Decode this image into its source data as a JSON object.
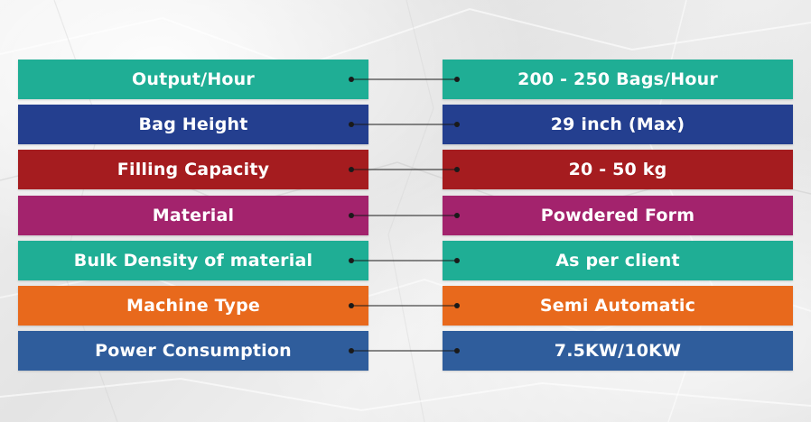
{
  "colors": {
    "teal": "#1fae95",
    "navy": "#243f8f",
    "red": "#a51c1f",
    "magenta": "#a3236d",
    "orange": "#e8691c",
    "blue": "#2f5d9c",
    "connector": "#1a1a1a"
  },
  "specs": [
    {
      "label": "Output/Hour",
      "value": "200 - 250 Bags/Hour",
      "color": "#1fae95"
    },
    {
      "label": "Bag Height",
      "value": "29 inch (Max)",
      "color": "#243f8f"
    },
    {
      "label": "Filling Capacity",
      "value": "20 - 50 kg",
      "color": "#a51c1f"
    },
    {
      "label": "Material",
      "value": "Powdered Form",
      "color": "#a3236d"
    },
    {
      "label": "Bulk Density of material",
      "value": "As per client",
      "color": "#1fae95"
    },
    {
      "label": "Machine Type",
      "value": "Semi Automatic",
      "color": "#e8691c"
    },
    {
      "label": "Power Consumption",
      "value": "7.5KW/10KW",
      "color": "#2f5d9c"
    }
  ]
}
